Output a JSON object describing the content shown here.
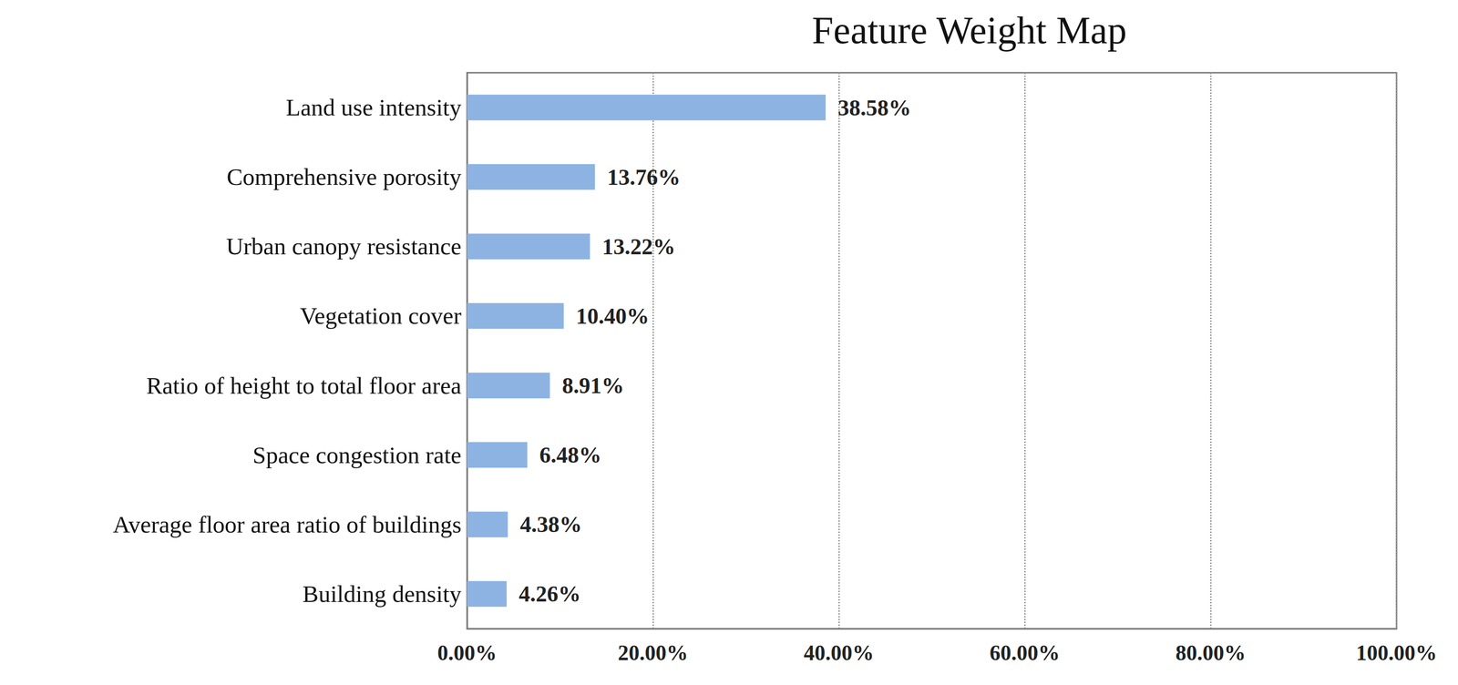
{
  "chart_data": {
    "type": "bar",
    "title": "Feature Weight Map",
    "orientation": "horizontal",
    "categories": [
      "Land use intensity",
      "Comprehensive porosity",
      "Urban canopy resistance",
      "Vegetation cover",
      "Ratio of height to total floor area",
      "Space congestion rate",
      "Average floor area ratio of buildings",
      "Building density"
    ],
    "values": [
      38.58,
      13.76,
      13.22,
      10.4,
      8.91,
      6.48,
      4.38,
      4.26
    ],
    "value_labels": [
      "38.58%",
      "13.76%",
      "13.22%",
      "10.40%",
      "8.91%",
      "6.48%",
      "4.38%",
      "4.26%"
    ],
    "color": "#8db3e2",
    "xlim": [
      0,
      100
    ],
    "xticks": [
      {
        "value": 0,
        "label": "0.00%"
      },
      {
        "value": 20,
        "label": "20.00%"
      },
      {
        "value": 40,
        "label": "40.00%"
      },
      {
        "value": 60,
        "label": "60.00%"
      },
      {
        "value": 80,
        "label": "80.00%"
      },
      {
        "value": 100,
        "label": "100.00%"
      }
    ],
    "grid": true,
    "data_labels": true
  }
}
